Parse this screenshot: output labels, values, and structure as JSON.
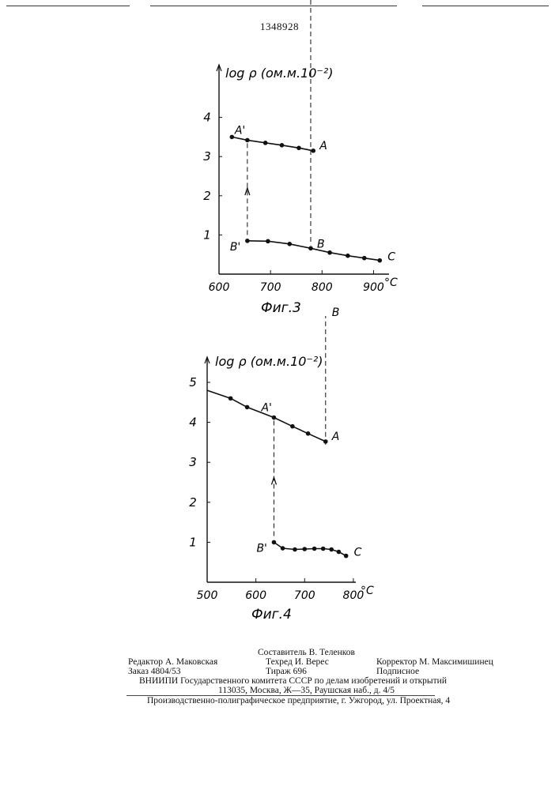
{
  "page_number": "1348928",
  "figures": [
    {
      "caption": "Фиг.3",
      "ylabel": "log ρ (ом.м.10⁻²)",
      "xunit": "°C",
      "xticks": [
        600,
        700,
        800,
        900
      ],
      "yticks": [
        1,
        2,
        3,
        4
      ],
      "point_labels": {
        "a_prime": "A'",
        "a": "A",
        "b_prime": "B'",
        "b": "B",
        "c": "C"
      }
    },
    {
      "caption": "Фиг.4",
      "ylabel": "log ρ (ом.м.10⁻²)",
      "xunit": "°C",
      "xticks": [
        500,
        600,
        700,
        800
      ],
      "yticks": [
        1,
        2,
        3,
        4,
        5
      ],
      "point_labels": {
        "a_prime": "A'",
        "a": "A",
        "b_prime": "B'",
        "b": "B",
        "c": "C"
      }
    }
  ],
  "chart_data": [
    {
      "type": "line",
      "title": "Фиг.3",
      "xlabel": "°C",
      "ylabel": "log ρ (ом.м.10⁻²)",
      "xlim": [
        600,
        930
      ],
      "ylim": [
        0,
        4.6
      ],
      "series": [
        {
          "x": [
            625,
            655,
            690,
            722,
            755,
            783
          ],
          "y": [
            3.5,
            3.42,
            3.35,
            3.29,
            3.22,
            3.15
          ]
        },
        {
          "x": [
            655,
            695,
            737,
            778,
            815,
            850,
            882,
            912
          ],
          "y": [
            0.85,
            0.84,
            0.77,
            0.66,
            0.55,
            0.47,
            0.41,
            0.35
          ]
        }
      ],
      "transitions": [
        {
          "from": "A",
          "to": "B",
          "x": 778,
          "direction": "down"
        },
        {
          "from": "B'",
          "to": "A'",
          "x": 655,
          "direction": "up"
        }
      ]
    },
    {
      "type": "line",
      "title": "Фиг.4",
      "xlabel": "°C",
      "ylabel": "log ρ (ом.м.10⁻²)",
      "xlim": [
        500,
        805
      ],
      "ylim": [
        0,
        5.4
      ],
      "series": [
        {
          "x": [
            500,
            548,
            582,
            637,
            675,
            707,
            743
          ],
          "y": [
            4.8,
            4.6,
            4.38,
            4.12,
            3.9,
            3.72,
            3.52
          ]
        },
        {
          "x": [
            637,
            655,
            680,
            700,
            720,
            738,
            755,
            770,
            785
          ],
          "y": [
            1.0,
            0.85,
            0.82,
            0.83,
            0.84,
            0.84,
            0.82,
            0.76,
            0.66
          ]
        }
      ],
      "transitions": [
        {
          "from": "A",
          "to": "B",
          "x": 743,
          "direction": "down"
        },
        {
          "from": "B'",
          "to": "A'",
          "x": 637,
          "direction": "up"
        }
      ]
    }
  ],
  "colophon": {
    "compiler": "Составитель В. Теленков",
    "editor": "Редактор А. Маковская",
    "techred": "Техред И. Верес",
    "corrector": "Корректор М. Максимишинец",
    "order": "Заказ 4804/53",
    "circulation": "Тираж 696",
    "subscription": "Подписное",
    "vniipi": "ВНИИПИ Государственного комитета СССР по делам изобретений и открытий",
    "address": "113035, Москва, Ж—35, Раушская наб., д. 4/5",
    "printer": "Производственно-полиграфическое предприятие, г. Ужгород, ул. Проектная, 4"
  }
}
